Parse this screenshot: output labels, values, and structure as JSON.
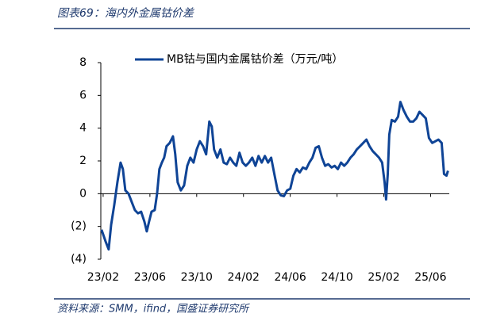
{
  "chart_data": {
    "type": "line",
    "title": "图表69：海内外金属钴价差",
    "source": "资料来源：SMM，ifind，国盛证券研究所",
    "xlim": [
      -0.2,
      29.6
    ],
    "xticks": [
      {
        "value": 0,
        "label": "23/02"
      },
      {
        "value": 4,
        "label": "23/06"
      },
      {
        "value": 8,
        "label": "23/10"
      },
      {
        "value": 12,
        "label": "24/02"
      },
      {
        "value": 16,
        "label": "24/06"
      },
      {
        "value": 20,
        "label": "24/10"
      },
      {
        "value": 24,
        "label": "25/02"
      },
      {
        "value": 28,
        "label": "25/06"
      }
    ],
    "ylim": [
      -4,
      8
    ],
    "yticks": [
      {
        "value": -4,
        "label": "(4)"
      },
      {
        "value": -2,
        "label": "(2)"
      },
      0,
      2,
      4,
      6,
      8
    ],
    "negative_tick_color": "#e0262a",
    "legend": "top",
    "x": [
      -0.14,
      0.2,
      0.47,
      0.68,
      0.95,
      1.22,
      1.49,
      1.69,
      1.9,
      2.17,
      2.44,
      2.71,
      2.98,
      3.25,
      3.53,
      3.73,
      3.93,
      4.14,
      4.41,
      4.61,
      4.81,
      5.02,
      5.22,
      5.42,
      5.69,
      5.97,
      6.17,
      6.37,
      6.64,
      6.92,
      7.19,
      7.46,
      7.73,
      8.0,
      8.27,
      8.54,
      8.81,
      9.08,
      9.29,
      9.49,
      9.76,
      10.03,
      10.31,
      10.58,
      10.85,
      11.12,
      11.39,
      11.66,
      11.93,
      12.2,
      12.47,
      12.75,
      13.02,
      13.29,
      13.56,
      13.83,
      14.1,
      14.37,
      14.64,
      14.92,
      15.19,
      15.46,
      15.73,
      16.0,
      16.27,
      16.54,
      16.81,
      17.08,
      17.36,
      17.63,
      17.9,
      18.17,
      18.44,
      18.71,
      18.98,
      19.25,
      19.53,
      19.8,
      20.07,
      20.34,
      20.61,
      20.88,
      21.15,
      21.42,
      21.69,
      21.97,
      22.24,
      22.51,
      22.78,
      23.05,
      23.32,
      23.59,
      23.86,
      24.07,
      24.2,
      24.34,
      24.47,
      24.68,
      24.95,
      25.22,
      25.42,
      25.69,
      25.97,
      26.24,
      26.51,
      26.78,
      27.05,
      27.32,
      27.59,
      27.86,
      28.14,
      28.41,
      28.68,
      28.95,
      29.15,
      29.36,
      29.49
    ],
    "series": [
      {
        "name": "MB钴与国内金属钴价差（万元/吨）",
        "color": "#0f4496",
        "values": [
          -2.2,
          -2.9,
          -3.4,
          -1.9,
          -0.7,
          0.7,
          1.9,
          1.5,
          0.2,
          0,
          -0.5,
          -1,
          -1.2,
          -1.1,
          -1.7,
          -2.3,
          -1.7,
          -1.1,
          -1,
          0,
          1.5,
          1.9,
          2.2,
          2.9,
          3.1,
          3.5,
          2.4,
          0.7,
          0.2,
          0.5,
          1.7,
          2.2,
          1.9,
          2.7,
          3.2,
          2.9,
          2.4,
          4.4,
          4.1,
          2.7,
          2.2,
          2.7,
          1.9,
          1.8,
          2.2,
          1.9,
          1.7,
          2.5,
          1.9,
          1.7,
          1.9,
          2.2,
          1.7,
          2.3,
          1.9,
          2.3,
          1.9,
          2.2,
          1.2,
          0.2,
          -0.1,
          -0.15,
          0.2,
          0.3,
          1.1,
          1.5,
          1.3,
          1.6,
          1.5,
          1.9,
          2.2,
          2.8,
          2.9,
          2.2,
          1.7,
          1.8,
          1.6,
          1.7,
          1.5,
          1.9,
          1.7,
          1.9,
          2.2,
          2.4,
          2.7,
          2.9,
          3.1,
          3.3,
          2.9,
          2.6,
          2.4,
          2.2,
          1.9,
          0.7,
          -0.35,
          1.2,
          3.6,
          4.5,
          4.4,
          4.7,
          5.6,
          5.1,
          4.7,
          4.4,
          4.4,
          4.6,
          5.0,
          4.8,
          4.6,
          3.4,
          3.1,
          3.2,
          3.3,
          3.1,
          1.2,
          1.1,
          1.4
        ]
      }
    ]
  }
}
